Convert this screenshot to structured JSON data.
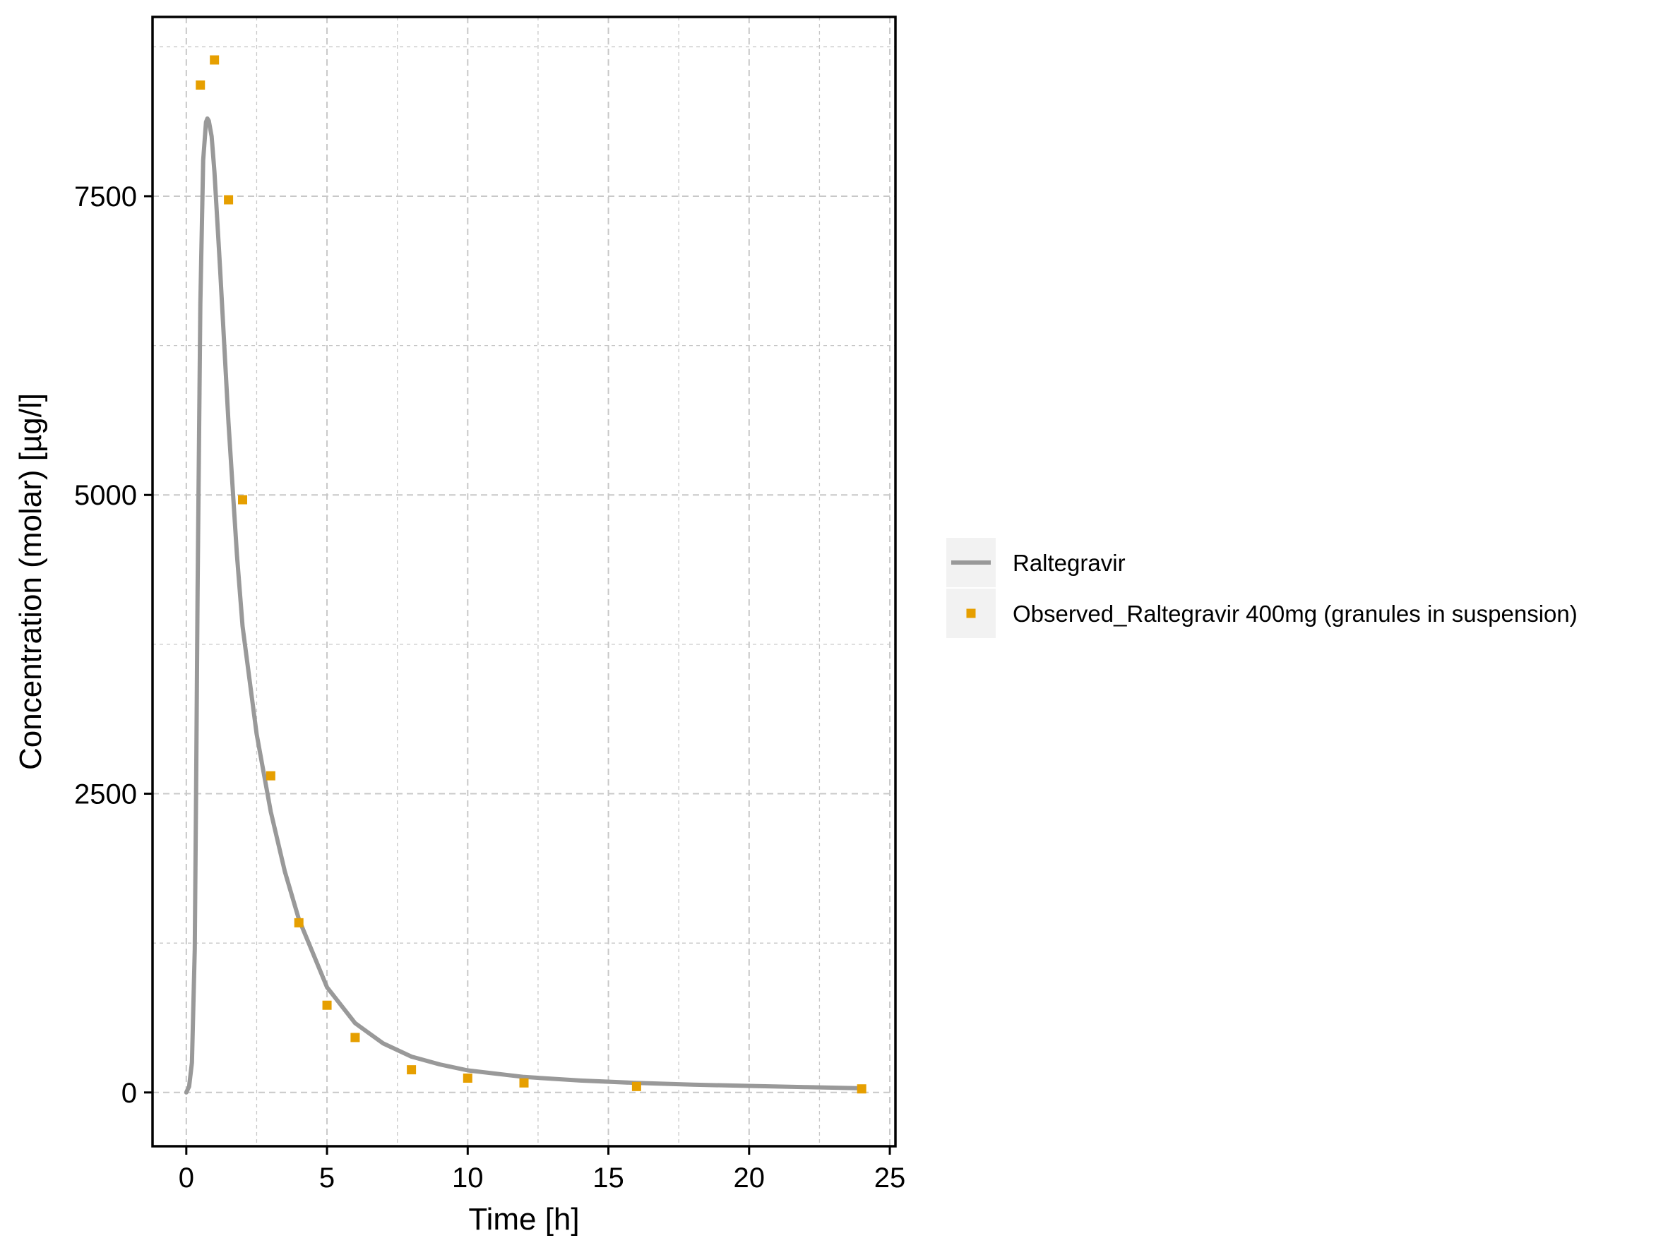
{
  "chart_data": {
    "type": "line",
    "xlabel": "Time [h]",
    "ylabel": "Concentration (molar) [µg/l]",
    "xlim": [
      -1.2,
      25.2
    ],
    "ylim": [
      -450,
      9000
    ],
    "x_ticks": [
      0,
      5,
      10,
      15,
      20,
      25
    ],
    "x_tick_labels": [
      "0",
      "5",
      "10",
      "15",
      "20",
      "25"
    ],
    "y_ticks": [
      0,
      2500,
      5000,
      7500
    ],
    "y_tick_labels": [
      "0",
      "2500",
      "5000",
      "7500"
    ],
    "x_minor_grid": [
      2.5,
      7.5,
      12.5,
      17.5,
      22.5
    ],
    "y_minor_grid": [
      1250,
      3750,
      6250,
      8750
    ],
    "grid": true,
    "legend_position": "right",
    "colors": {
      "simulated": "#999999",
      "observed": "#E69F00",
      "grid": "#c8c8c8",
      "legend_key_bg": "#f2f2f2"
    },
    "series": [
      {
        "name": "Raltegravir",
        "kind": "line",
        "x": [
          0,
          0.1,
          0.2,
          0.3,
          0.35,
          0.4,
          0.5,
          0.6,
          0.7,
          0.75,
          0.8,
          0.9,
          1.0,
          1.2,
          1.5,
          1.8,
          2.0,
          2.5,
          3.0,
          3.5,
          4.0,
          5.0,
          6.0,
          7.0,
          8.0,
          9.0,
          10.0,
          12.0,
          14.0,
          16.0,
          18.0,
          20.0,
          22.0,
          24.0
        ],
        "y": [
          0,
          50,
          250,
          1200,
          2600,
          4200,
          6600,
          7800,
          8120,
          8150,
          8130,
          8000,
          7700,
          6900,
          5600,
          4500,
          3900,
          3000,
          2350,
          1850,
          1450,
          880,
          580,
          410,
          300,
          235,
          185,
          130,
          100,
          80,
          65,
          55,
          45,
          35
        ]
      },
      {
        "name": "Observed_Raltegravir 400mg (granules in suspension)",
        "kind": "scatter",
        "x": [
          0.5,
          1.0,
          1.5,
          2.0,
          3.0,
          4.0,
          5.0,
          6.0,
          8.0,
          10.0,
          12.0,
          16.0,
          24.0
        ],
        "y": [
          8430,
          8640,
          7470,
          4960,
          2650,
          1420,
          730,
          460,
          190,
          120,
          80,
          50,
          30
        ]
      }
    ]
  }
}
